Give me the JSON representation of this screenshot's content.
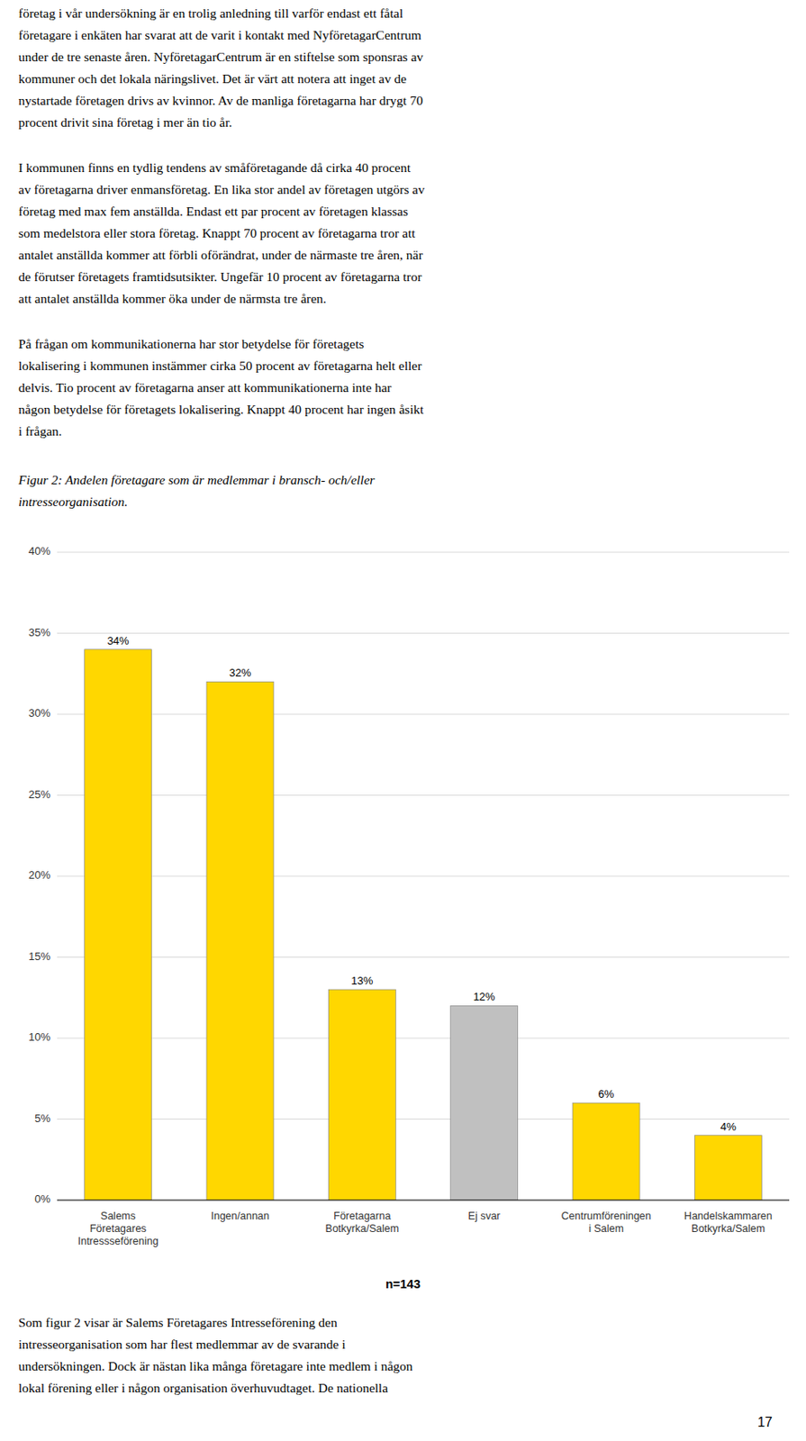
{
  "para1_lines": [
    "företag i vår undersökning är en trolig anledning till varför endast ett fåtal",
    "företagare i enkäten har svarat att de varit i kontakt med NyföretagarCentrum",
    "under de tre senaste åren. NyföretagarCentrum är en stiftelse som sponsras av",
    "kommuner och det lokala näringslivet. Det är värt att notera att inget av de",
    "nystartade företagen drivs av kvinnor. Av de manliga företagarna har drygt 70",
    "procent drivit sina företag i mer än tio år."
  ],
  "para2_lines": [
    "I kommunen finns en tydlig tendens av småföretagande då cirka 40 procent",
    "av företagarna driver enmansföretag. En lika stor andel av företagen utgörs av",
    "företag med max fem anställda. Endast ett par procent av företagen klassas",
    "som medelstora eller stora företag. Knappt 70 procent av företagarna tror att",
    "antalet anställda kommer att förbli oförändrat, under de närmaste tre åren, när",
    "de förutser företagets framtidsutsikter. Ungefär 10 procent av företagarna tror",
    "att antalet anställda kommer öka under de närmsta tre åren."
  ],
  "para3_lines": [
    "På frågan om kommunikationerna har stor betydelse för företagets",
    "lokalisering i kommunen instämmer cirka 50 procent av företagarna helt eller",
    "delvis. Tio procent av företagarna anser att kommunikationerna inte har",
    "någon betydelse för företagets lokalisering. Knappt 40 procent har ingen åsikt",
    "i frågan."
  ],
  "caption_lines": [
    "Figur 2: Andelen företagare som är medlemmar i bransch- och/eller",
    "intresseorganisation."
  ],
  "footer_lines": [
    "Som figur 2 visar är Salems Företagares Intresseförening den",
    "intresseorganisation som har flest medlemmar av de svarande i",
    "undersökningen. Dock är nästan lika många företagare inte medlem i någon",
    "lokal förening eller i någon organisation överhuvudtaget. De nationella"
  ],
  "page_number": "17",
  "chart_data": {
    "type": "bar",
    "categories": [
      "Salems\nFöretagares\nIntressseförening",
      "Ingen/annan",
      "Företagarna\nBotkyrka/Salem",
      "Ej svar",
      "Centrumföreningen\ni Salem",
      "Handelskammaren\nBotkyrka/Salem"
    ],
    "values": [
      34,
      32,
      13,
      12,
      6,
      4
    ],
    "value_labels": [
      "34%",
      "32%",
      "13%",
      "12%",
      "6%",
      "4%"
    ],
    "colors": [
      "#FFD700",
      "#FFD700",
      "#FFD700",
      "#C0C0C0",
      "#FFD700",
      "#FFD700"
    ],
    "data_labels": true,
    "ylim": [
      0,
      40
    ],
    "yticks": [
      {
        "value": 0,
        "label": "0%"
      },
      {
        "value": 5,
        "label": "5%"
      },
      {
        "value": 10,
        "label": "10%"
      },
      {
        "value": 15,
        "label": "15%"
      },
      {
        "value": 20,
        "label": "20%"
      },
      {
        "value": 25,
        "label": "25%"
      },
      {
        "value": 30,
        "label": "30%"
      },
      {
        "value": 35,
        "label": "35%"
      },
      {
        "value": 40,
        "label": "40%"
      }
    ],
    "grid": true,
    "annotations": [
      "n=143"
    ]
  }
}
